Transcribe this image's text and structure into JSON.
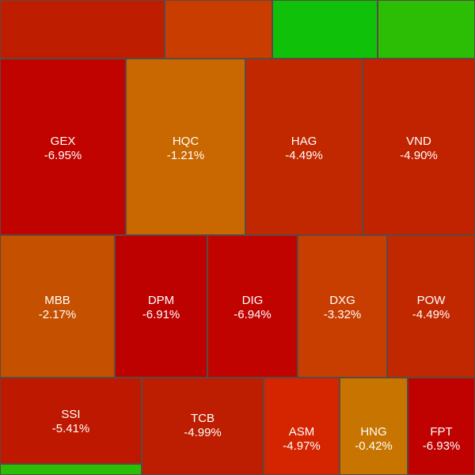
{
  "tiles": [
    {
      "name": "tile-top-1",
      "symbol": "",
      "change": "",
      "color": "#bf1d00"
    },
    {
      "name": "tile-top-2",
      "symbol": "",
      "change": "",
      "color": "#c93e00"
    },
    {
      "name": "tile-top-3",
      "symbol": "",
      "change": "",
      "color": "#10c10a"
    },
    {
      "name": "tile-top-4",
      "symbol": "",
      "change": "",
      "color": "#2cbd05"
    },
    {
      "name": "tile-gex",
      "symbol": "GEX",
      "change": "-6.95%",
      "color": "#c10300"
    },
    {
      "name": "tile-hqc",
      "symbol": "HQC",
      "change": "-1.21%",
      "color": "#c96700"
    },
    {
      "name": "tile-hag",
      "symbol": "HAG",
      "change": "-4.49%",
      "color": "#c12800"
    },
    {
      "name": "tile-vnd",
      "symbol": "VND",
      "change": "-4.90%",
      "color": "#c12200"
    },
    {
      "name": "tile-mbb",
      "symbol": "MBB",
      "change": "-2.17%",
      "color": "#c55100"
    },
    {
      "name": "tile-dpm",
      "symbol": "DPM",
      "change": "-6.91%",
      "color": "#bd0100"
    },
    {
      "name": "tile-dig",
      "symbol": "DIG",
      "change": "-6.94%",
      "color": "#c10300"
    },
    {
      "name": "tile-dxg",
      "symbol": "DXG",
      "change": "-3.32%",
      "color": "#c83e00"
    },
    {
      "name": "tile-pow",
      "symbol": "POW",
      "change": "-4.49%",
      "color": "#c12800"
    },
    {
      "name": "tile-ssi",
      "symbol": "SSI",
      "change": "-5.41%",
      "color": "#bf1800"
    },
    {
      "name": "tile-tcb",
      "symbol": "TCB",
      "change": "-4.99%",
      "color": "#bd1d00"
    },
    {
      "name": "tile-asm",
      "symbol": "ASM",
      "change": "-4.97%",
      "color": "#d42500"
    },
    {
      "name": "tile-hng",
      "symbol": "HNG",
      "change": "-0.42%",
      "color": "#c87400"
    },
    {
      "name": "tile-fpt",
      "symbol": "FPT",
      "change": "-6.93%",
      "color": "#bf0100"
    },
    {
      "name": "tile-bottom-green",
      "symbol": "",
      "change": "",
      "color": "#2cbd05"
    }
  ]
}
